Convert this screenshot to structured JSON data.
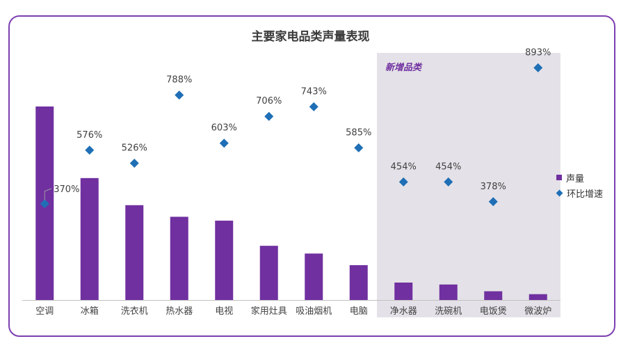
{
  "chart_data": {
    "type": "bar",
    "title": "主要家电品类声量表现",
    "annotation": "新增品类",
    "categories": [
      "空调",
      "冰箱",
      "洗衣机",
      "热水器",
      "电视",
      "家用灶具",
      "吸油烟机",
      "电脑",
      "净水器",
      "洗碗机",
      "电饭煲",
      "微波炉"
    ],
    "series": [
      {
        "name": "声量",
        "axis": "left",
        "values": [
          100,
          63,
          49,
          43,
          41,
          28,
          24,
          18,
          9,
          8,
          4.5,
          3
        ]
      },
      {
        "name": "环比增速",
        "axis": "right",
        "values": [
          370,
          576,
          526,
          788,
          603,
          706,
          743,
          585,
          454,
          454,
          378,
          893
        ],
        "labels": [
          "370%",
          "576%",
          "526%",
          "788%",
          "603%",
          "706%",
          "743%",
          "585%",
          "454%",
          "454%",
          "378%",
          "893%"
        ]
      }
    ],
    "highlight_categories": [
      "净水器",
      "洗碗机",
      "电饭煲",
      "微波炉"
    ],
    "ylim": [
      0,
      100
    ],
    "y2lim": [
      0,
      1100
    ],
    "grid": false,
    "legend_position": "right",
    "colors": {
      "bar": "#7030a0",
      "marker": "#1f6fb6",
      "highlight_bg": "#e4e2e8",
      "annotation": "#7030a0",
      "frame": "#7b3fb0"
    }
  }
}
